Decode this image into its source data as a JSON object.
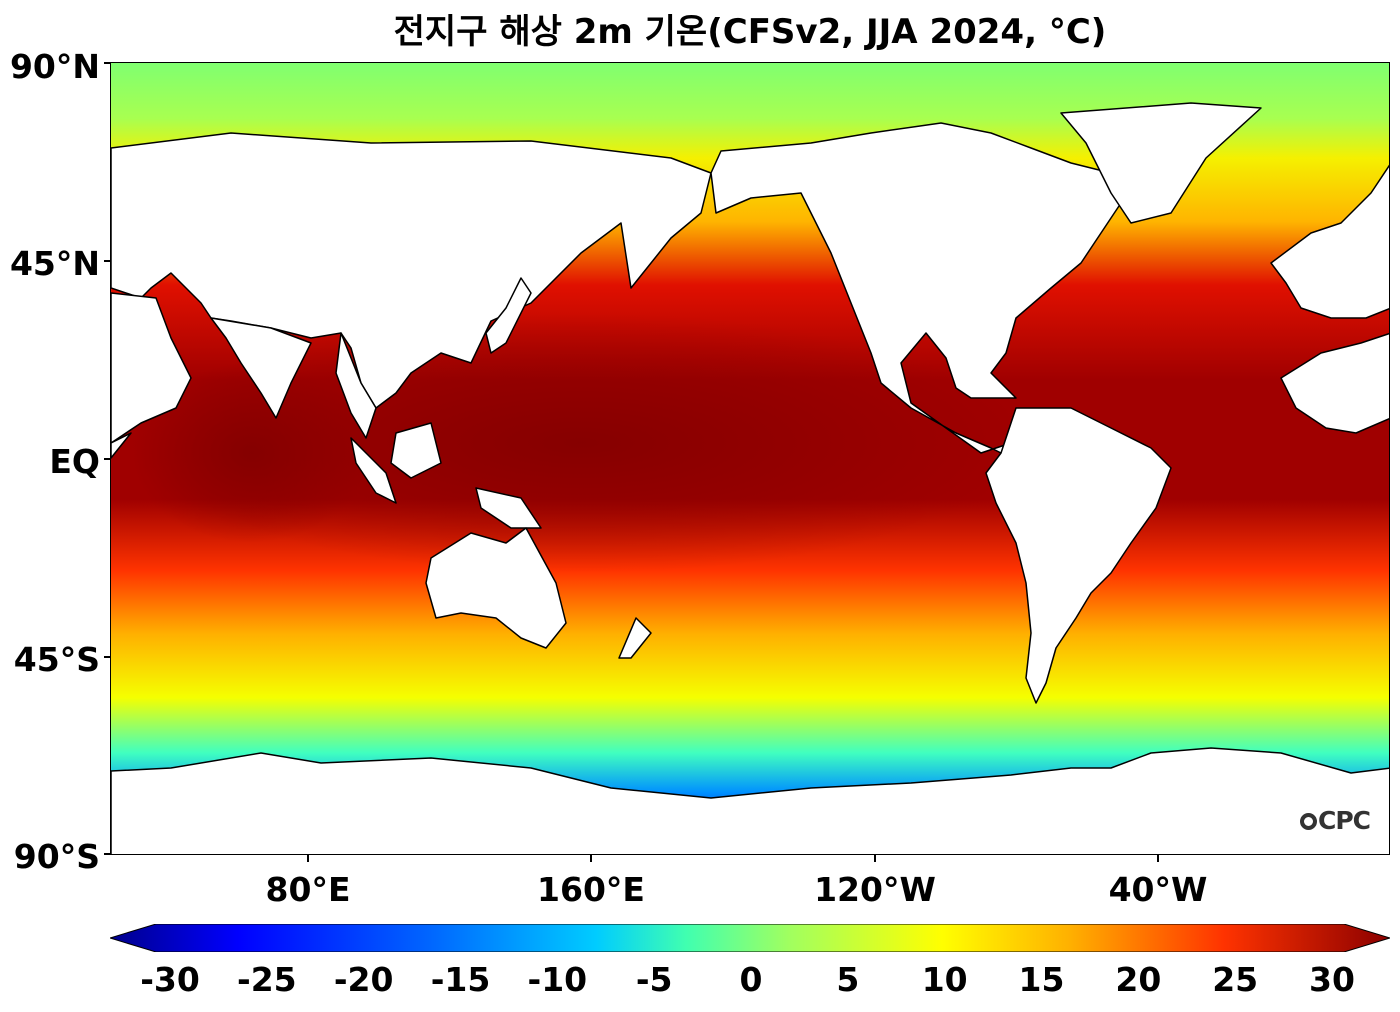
{
  "title": "전지구 해상 2m 기온(CFSv2, JJA 2024, °C)",
  "y_axis": {
    "labels": [
      "90°N",
      "45°N",
      "EQ",
      "45°S",
      "90°S"
    ]
  },
  "x_axis": {
    "labels": [
      "80°E",
      "160°E",
      "120°W",
      "40°W"
    ]
  },
  "colorbar": {
    "ticks": [
      "-30",
      "-25",
      "-20",
      "-15",
      "-10",
      "-5",
      "0",
      "5",
      "10",
      "15",
      "20",
      "25",
      "30"
    ],
    "colors": [
      "#00008b",
      "#0000ff",
      "#0066ff",
      "#00ccff",
      "#40ffb0",
      "#a0ff60",
      "#ffff00",
      "#ffb000",
      "#ff3300",
      "#8b0000"
    ],
    "extend": "both"
  },
  "logo": {
    "text": "CPC"
  },
  "map": {
    "projection": "equirectangular",
    "central_longitude": "160°E",
    "field": "2m air temperature over ocean"
  }
}
